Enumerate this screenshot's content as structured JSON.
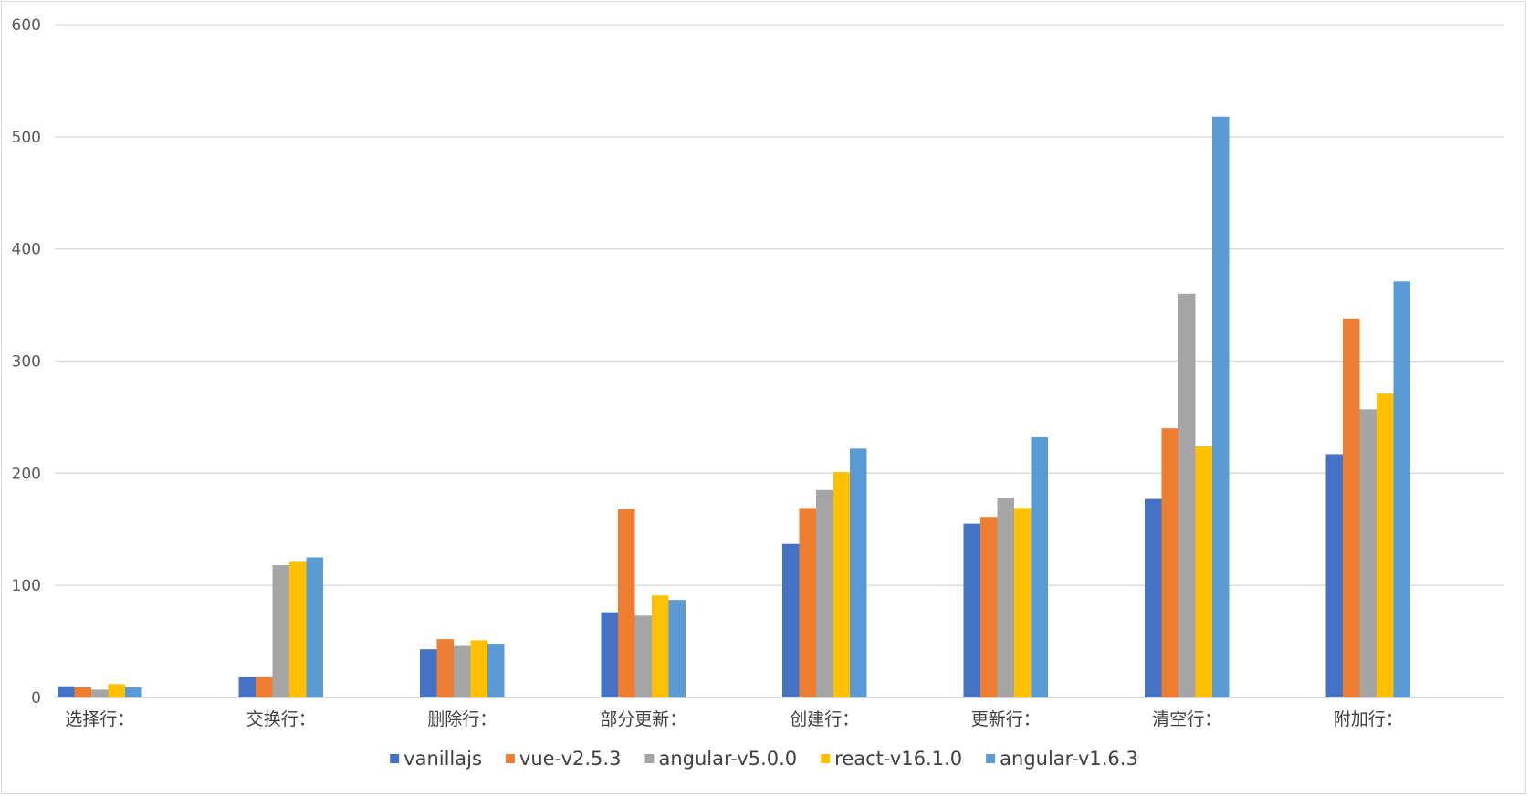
{
  "chart_data": {
    "type": "bar",
    "title": "",
    "xlabel": "",
    "ylabel": "",
    "ylim": [
      0,
      600
    ],
    "yticks": [
      0,
      100,
      200,
      300,
      400,
      500,
      600
    ],
    "grid": true,
    "legend_position": "bottom",
    "categories": [
      "选择行：",
      "交换行：",
      "删除行：",
      "部分更新：",
      "创建行：",
      "更新行：",
      "清空行：",
      "附加行："
    ],
    "series": [
      {
        "name": "vanillajs",
        "color": "#4472C4",
        "values": [
          10,
          18,
          43,
          76,
          137,
          155,
          177,
          217
        ]
      },
      {
        "name": "vue-v2.5.3",
        "color": "#ED7D31",
        "values": [
          9,
          18,
          52,
          168,
          169,
          161,
          240,
          338
        ]
      },
      {
        "name": "angular-v5.0.0",
        "color": "#A5A5A5",
        "values": [
          7,
          118,
          46,
          73,
          185,
          178,
          360,
          257
        ]
      },
      {
        "name": "react-v16.1.0",
        "color": "#FFC000",
        "values": [
          12,
          121,
          51,
          91,
          201,
          169,
          224,
          271
        ]
      },
      {
        "name": "angular-v1.6.3",
        "color": "#5B9BD5",
        "values": [
          9,
          125,
          48,
          87,
          222,
          232,
          518,
          371
        ]
      }
    ]
  }
}
